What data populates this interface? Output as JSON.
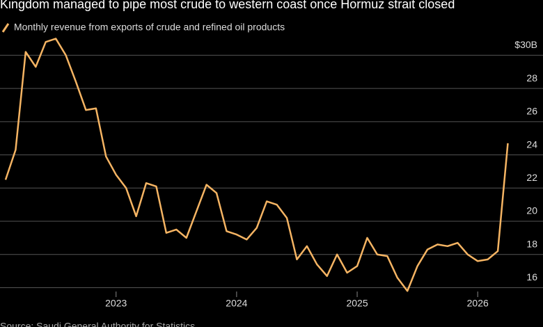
{
  "chart_data": {
    "type": "line",
    "title": "Kingdom managed to pipe most crude to western coast once Hormuz strait closed",
    "source": "Source: Saudi General Authority for Statistics",
    "categories": [
      null,
      null,
      null,
      null,
      null,
      null,
      null,
      null,
      null,
      null,
      null,
      "2023",
      null,
      null,
      null,
      null,
      null,
      null,
      null,
      null,
      null,
      null,
      null,
      "2024",
      null,
      null,
      null,
      null,
      null,
      null,
      null,
      null,
      null,
      null,
      null,
      "2025",
      null,
      null,
      null,
      null,
      null,
      null,
      null,
      null,
      null,
      null,
      null,
      "2026",
      null,
      null,
      null
    ],
    "series": [
      {
        "name": "Monthly revenue from exports of crude and refined oil products",
        "color": "#f5b463",
        "values": [
          22.5,
          24.3,
          30.2,
          29.3,
          30.8,
          31.0,
          30.0,
          28.4,
          26.7,
          26.8,
          23.9,
          22.8,
          22.0,
          20.3,
          22.3,
          22.1,
          19.3,
          19.5,
          19.0,
          20.6,
          22.2,
          21.7,
          19.4,
          19.2,
          18.9,
          19.6,
          21.2,
          21.0,
          20.2,
          17.7,
          18.5,
          17.4,
          16.7,
          18.0,
          16.9,
          17.3,
          19.0,
          18.0,
          17.9,
          16.6,
          15.8,
          17.3,
          18.3,
          18.6,
          18.5,
          18.7,
          18.0,
          17.6,
          17.7,
          18.2,
          24.7
        ]
      }
    ],
    "ylim": [
      15.6,
      31.4
    ],
    "yticks": [
      16,
      18,
      20,
      22,
      24,
      26,
      28,
      {
        "value": 30,
        "label": "$30B"
      }
    ],
    "grid": true
  }
}
